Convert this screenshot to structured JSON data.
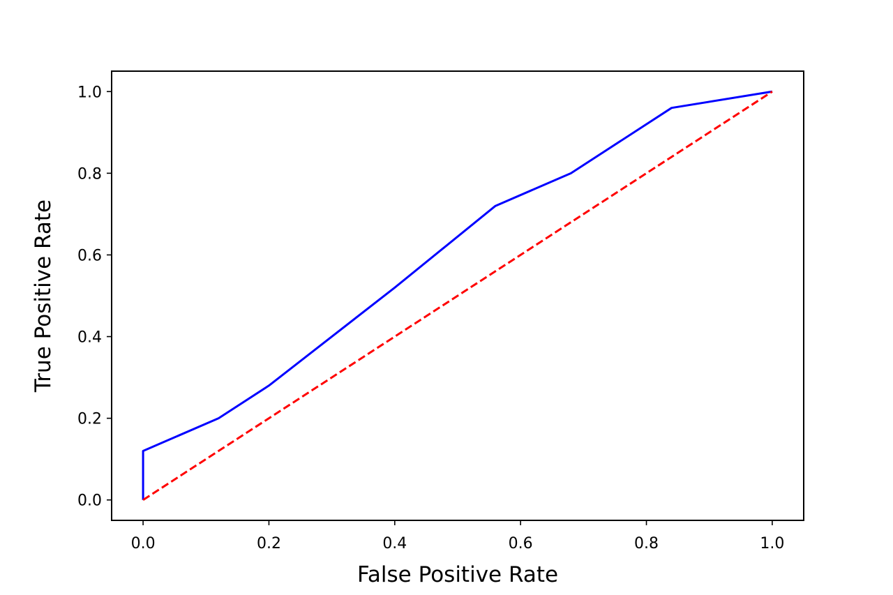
{
  "chart_data": {
    "type": "line",
    "xlabel": "False Positive Rate",
    "ylabel": "True Positive Rate",
    "xlim": [
      -0.05,
      1.05
    ],
    "ylim": [
      -0.05,
      1.05
    ],
    "xticks": [
      0.0,
      0.2,
      0.4,
      0.6,
      0.8,
      1.0
    ],
    "yticks": [
      0.0,
      0.2,
      0.4,
      0.6,
      0.8,
      1.0
    ],
    "xtick_labels": [
      "0.0",
      "0.2",
      "0.4",
      "0.6",
      "0.8",
      "1.0"
    ],
    "ytick_labels": [
      "0.0",
      "0.2",
      "0.4",
      "0.6",
      "0.8",
      "1.0"
    ],
    "grid": false,
    "legend": "none",
    "series": [
      {
        "color": "#0000ff",
        "style": "solid",
        "x": [
          0.0,
          0.0,
          0.12,
          0.2,
          0.4,
          0.56,
          0.68,
          0.84,
          1.0
        ],
        "y": [
          0.0,
          0.12,
          0.2,
          0.28,
          0.52,
          0.72,
          0.8,
          0.96,
          1.0
        ]
      },
      {
        "color": "#ff0000",
        "style": "dashed",
        "x": [
          0.0,
          1.0
        ],
        "y": [
          0.0,
          1.0
        ]
      }
    ]
  }
}
